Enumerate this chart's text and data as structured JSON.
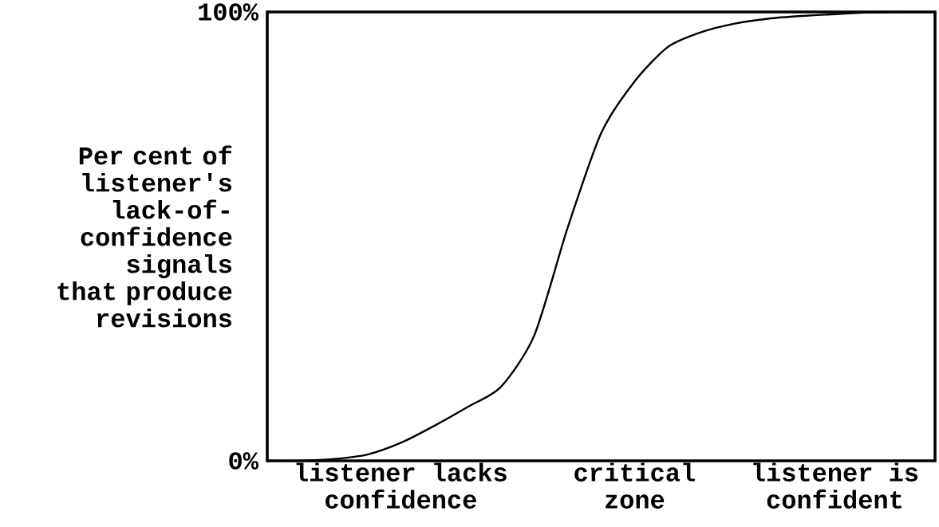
{
  "chart_data": {
    "type": "line",
    "ylabel": "Per cent of listener's lack-of-confidence signals that produce revisions",
    "categories": [
      null,
      null,
      null,
      null,
      "listener lacks confidence",
      null,
      null,
      null,
      null,
      null,
      null,
      "critical zone",
      null,
      null,
      null,
      null,
      null,
      "listener is confident",
      null,
      null,
      null
    ],
    "values": [
      0,
      0,
      0.4,
      1.4,
      4,
      7.8,
      12,
      16.5,
      28,
      52,
      73,
      84.5,
      92.2,
      95.5,
      97.4,
      98.5,
      99.1,
      99.5,
      99.9,
      100,
      100
    ],
    "color": "#000000",
    "ylim": [
      0,
      100
    ],
    "yticks": [
      {
        "value": 0,
        "label": "0%"
      },
      {
        "value": 100,
        "label": "100%"
      }
    ]
  }
}
